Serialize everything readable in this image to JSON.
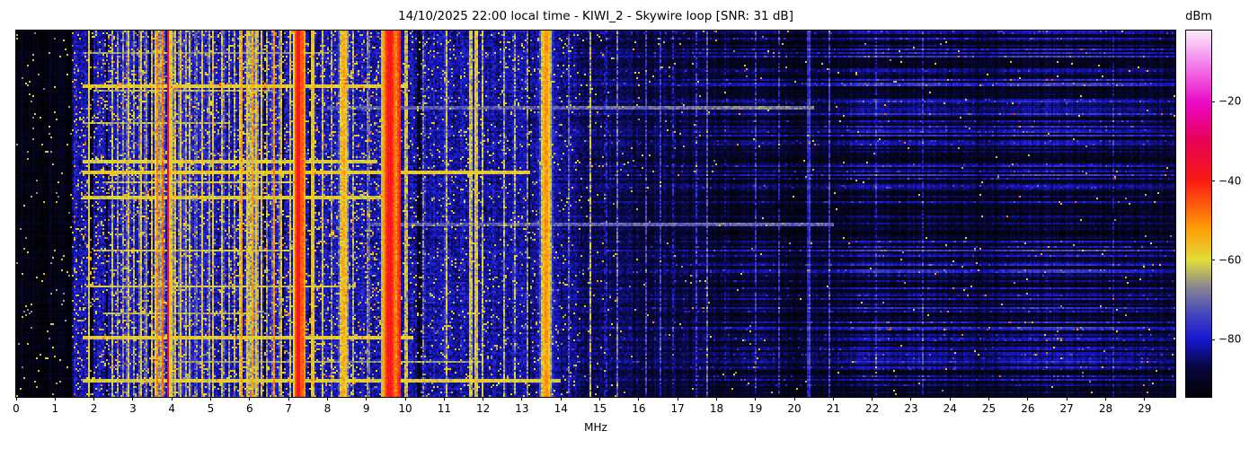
{
  "title": "14/10/2025 22:00 local time - KIWI_2 - Skywire loop [SNR: 31 dB]",
  "chart_data": {
    "type": "heatmap",
    "subtype": "radio-spectrogram-waterfall",
    "title": "14/10/2025 22:00 local time - KIWI_2 - Skywire loop [SNR: 31 dB]",
    "station": "KIWI_2",
    "antenna": "Skywire loop",
    "snr_db": 31,
    "timestamp_label": "14/10/2025 22:00 local time",
    "xlabel": "MHz",
    "x_range": [
      0,
      29.79
    ],
    "x_ticks": [
      0,
      1,
      2,
      3,
      4,
      5,
      6,
      7,
      8,
      9,
      10,
      11,
      12,
      13,
      14,
      15,
      16,
      17,
      18,
      19,
      20,
      21,
      22,
      23,
      24,
      25,
      26,
      27,
      28,
      29
    ],
    "value_label": "dBm",
    "value_range": [
      -94.5,
      -2
    ],
    "colorbar_ticks": [
      -20,
      -40,
      -60,
      -80
    ],
    "legend_position": "right-colorbar",
    "grid": false,
    "colormap_stops": [
      [
        0.0,
        [
          2,
          2,
          6
        ]
      ],
      [
        0.08,
        [
          8,
          8,
          62
        ]
      ],
      [
        0.157,
        [
          24,
          24,
          208
        ]
      ],
      [
        0.23,
        [
          74,
          74,
          190
        ]
      ],
      [
        0.3,
        [
          138,
          136,
          148
        ]
      ],
      [
        0.373,
        [
          226,
          222,
          58
        ]
      ],
      [
        0.46,
        [
          255,
          158,
          8
        ]
      ],
      [
        0.589,
        [
          250,
          28,
          20
        ]
      ],
      [
        0.7,
        [
          232,
          2,
          84
        ]
      ],
      [
        0.805,
        [
          236,
          10,
          200
        ]
      ],
      [
        0.91,
        [
          244,
          130,
          236
        ]
      ],
      [
        1.0,
        [
          253,
          233,
          252
        ]
      ]
    ],
    "render_model": {
      "seed": 20251014,
      "cols": 645,
      "rows": 204,
      "noise_floor_dbm": [
        [
          0,
          -93
        ],
        [
          1.44,
          -93
        ],
        [
          1.46,
          -81
        ],
        [
          9.8,
          -81
        ],
        [
          12.5,
          -82
        ],
        [
          13.8,
          -82.5
        ],
        [
          14.6,
          -86.5
        ],
        [
          15.5,
          -87.5
        ],
        [
          17.6,
          -89.5
        ],
        [
          18.4,
          -91
        ],
        [
          29.79,
          -91
        ]
      ],
      "texture_db": [
        [
          0,
          2
        ],
        [
          1.44,
          2
        ],
        [
          1.46,
          9
        ],
        [
          9.8,
          9
        ],
        [
          13.8,
          8
        ],
        [
          14.6,
          6
        ],
        [
          15.5,
          5
        ],
        [
          17.8,
          4
        ],
        [
          29.79,
          4
        ]
      ],
      "speckle_prob": [
        [
          0,
          0.015
        ],
        [
          1.44,
          0.015
        ],
        [
          1.46,
          0.1
        ],
        [
          9.5,
          0.1
        ],
        [
          9.8,
          0.06
        ],
        [
          13.8,
          0.05
        ],
        [
          14.6,
          0.02
        ],
        [
          15.5,
          0.01
        ],
        [
          17.8,
          0.005
        ],
        [
          29.79,
          0.005
        ]
      ],
      "stripe_envelope": [
        [
          13.9,
          0
        ],
        [
          14.5,
          0.18
        ],
        [
          15.5,
          0.22
        ],
        [
          17.0,
          0.25
        ],
        [
          17.9,
          0.45
        ],
        [
          18.4,
          0.6
        ],
        [
          19.4,
          0.6
        ],
        [
          20.1,
          0.42
        ],
        [
          21.0,
          0.6
        ],
        [
          21.6,
          0.9
        ],
        [
          23.2,
          0.95
        ],
        [
          24.3,
          0.8
        ],
        [
          24.9,
          0.6
        ],
        [
          25.6,
          0.95
        ],
        [
          27.6,
          1.0
        ],
        [
          28.8,
          0.8
        ],
        [
          29.4,
          0.6
        ],
        [
          29.79,
          0.55
        ]
      ],
      "signals": [
        {
          "f": 1.87,
          "w": 0.02,
          "dbm": -56,
          "flicker": 0.3
        },
        {
          "f": 2.48,
          "w": 0.02,
          "dbm": -58,
          "flicker": 0.4
        },
        {
          "f": 2.6,
          "w": 0.02,
          "dbm": -60,
          "flicker": 0.5
        },
        {
          "f": 2.75,
          "w": 0.02,
          "dbm": -62,
          "flicker": 0.5
        },
        {
          "f": 2.88,
          "w": 0.03,
          "dbm": -57,
          "flicker": 0.4
        },
        {
          "f": 3.02,
          "w": 0.02,
          "dbm": -60,
          "flicker": 0.5
        },
        {
          "f": 3.2,
          "w": 0.025,
          "dbm": -55,
          "flicker": 0.35
        },
        {
          "f": 3.33,
          "w": 0.02,
          "dbm": -58,
          "flicker": 0.4
        },
        {
          "f": 3.49,
          "w": 0.02,
          "dbm": -57,
          "flicker": 0.4
        },
        {
          "f": 3.62,
          "w": 0.03,
          "dbm": -46,
          "flicker": 0.3
        },
        {
          "f": 3.76,
          "w": 0.025,
          "dbm": -44,
          "flicker": 0.3
        },
        {
          "f": 3.9,
          "w": 0.018,
          "dbm": -27,
          "flicker": 0.15
        },
        {
          "f": 3.97,
          "w": 0.02,
          "dbm": -47,
          "flicker": 0.3
        },
        {
          "f": 4.07,
          "w": 0.02,
          "dbm": -52,
          "flicker": 0.4
        },
        {
          "f": 4.22,
          "w": 0.03,
          "dbm": -55,
          "flicker": 0.4
        },
        {
          "f": 4.35,
          "w": 0.02,
          "dbm": -57,
          "flicker": 0.4
        },
        {
          "f": 4.47,
          "w": 0.02,
          "dbm": -56,
          "flicker": 0.4
        },
        {
          "f": 4.62,
          "w": 0.02,
          "dbm": -60,
          "flicker": 0.5
        },
        {
          "f": 4.78,
          "w": 0.025,
          "dbm": -55,
          "flicker": 0.4
        },
        {
          "f": 4.95,
          "w": 0.02,
          "dbm": -58,
          "flicker": 0.4
        },
        {
          "f": 5.06,
          "w": 0.02,
          "dbm": -55,
          "flicker": 0.4
        },
        {
          "f": 5.3,
          "w": 0.025,
          "dbm": -56,
          "flicker": 0.4
        },
        {
          "f": 5.48,
          "w": 0.02,
          "dbm": -60,
          "flicker": 0.5
        },
        {
          "f": 5.62,
          "w": 0.02,
          "dbm": -58,
          "flicker": 0.5
        },
        {
          "f": 5.78,
          "w": 0.02,
          "dbm": -45,
          "flicker": 0.3
        },
        {
          "f": 5.95,
          "w": 0.03,
          "dbm": -53,
          "flicker": 0.4
        },
        {
          "f": 6.07,
          "w": 0.03,
          "dbm": -48,
          "flicker": 0.35
        },
        {
          "f": 6.18,
          "w": 0.025,
          "dbm": -52,
          "flicker": 0.4
        },
        {
          "f": 6.3,
          "w": 0.02,
          "dbm": -55,
          "flicker": 0.4
        },
        {
          "f": 6.45,
          "w": 0.02,
          "dbm": -60,
          "flicker": 0.5
        },
        {
          "f": 6.62,
          "w": 0.02,
          "dbm": -46,
          "flicker": 0.35
        },
        {
          "f": 6.8,
          "w": 0.025,
          "dbm": -54,
          "flicker": 0.4
        },
        {
          "f": 7.05,
          "w": 0.02,
          "dbm": -56,
          "flicker": 0.4
        },
        {
          "f": 7.25,
          "w": 0.06,
          "dbm": -36,
          "flicker": 0.12
        },
        {
          "f": 7.38,
          "w": 0.03,
          "dbm": -42,
          "flicker": 0.2
        },
        {
          "f": 7.62,
          "w": 0.03,
          "dbm": -50,
          "flicker": 0.35
        },
        {
          "f": 7.87,
          "w": 0.02,
          "dbm": -55,
          "flicker": 0.45
        },
        {
          "f": 8.1,
          "w": 0.02,
          "dbm": -60,
          "flicker": 0.5
        },
        {
          "f": 8.42,
          "w": 0.07,
          "dbm": -50,
          "flicker": 0.3
        },
        {
          "f": 8.65,
          "w": 0.02,
          "dbm": -58,
          "flicker": 0.5
        },
        {
          "f": 9.05,
          "w": 0.02,
          "dbm": -57,
          "flicker": 0.5
        },
        {
          "f": 9.6,
          "w": 0.1,
          "dbm": -37,
          "flicker": 0.12
        },
        {
          "f": 9.78,
          "w": 0.03,
          "dbm": -45,
          "flicker": 0.3
        },
        {
          "f": 9.84,
          "w": 0.018,
          "dbm": -30,
          "flicker": 0.2
        },
        {
          "f": 10.02,
          "w": 0.03,
          "dbm": -52,
          "flicker": 0.5
        },
        {
          "f": 10.45,
          "w": 0.02,
          "dbm": -62,
          "flicker": 0.6
        },
        {
          "f": 11.05,
          "w": 0.02,
          "dbm": -55,
          "flicker": 0.5
        },
        {
          "f": 11.68,
          "w": 0.03,
          "dbm": -54,
          "flicker": 0.4
        },
        {
          "f": 11.82,
          "w": 0.03,
          "dbm": -52,
          "flicker": 0.4
        },
        {
          "f": 11.98,
          "w": 0.02,
          "dbm": -57,
          "flicker": 0.5
        },
        {
          "f": 12.55,
          "w": 0.02,
          "dbm": -58,
          "flicker": 0.5
        },
        {
          "f": 12.8,
          "w": 0.015,
          "dbm": -52,
          "flicker": 0.7
        },
        {
          "f": 13.15,
          "w": 0.015,
          "dbm": -60,
          "flicker": 0.6
        },
        {
          "f": 13.62,
          "w": 0.08,
          "dbm": -48,
          "flicker": 0.25
        },
        {
          "f": 14.2,
          "w": 0.015,
          "dbm": -68,
          "flicker": 0.5
        },
        {
          "f": 14.75,
          "w": 0.02,
          "dbm": -58,
          "flicker": 0.6
        },
        {
          "f": 15.15,
          "w": 0.015,
          "dbm": -63,
          "flicker": 0.6
        },
        {
          "f": 15.45,
          "w": 0.015,
          "dbm": -66,
          "flicker": 0.6
        },
        {
          "f": 15.75,
          "w": 0.015,
          "dbm": -70,
          "flicker": 0.5
        },
        {
          "f": 16.2,
          "w": 0.015,
          "dbm": -68,
          "flicker": 0.5
        },
        {
          "f": 16.55,
          "w": 0.015,
          "dbm": -70,
          "flicker": 0.5
        },
        {
          "f": 16.9,
          "w": 0.015,
          "dbm": -66,
          "flicker": 0.6
        },
        {
          "f": 17.5,
          "w": 0.015,
          "dbm": -64,
          "flicker": 0.6
        },
        {
          "f": 17.75,
          "w": 0.015,
          "dbm": -68,
          "flicker": 0.5
        },
        {
          "f": 18.2,
          "w": 0.015,
          "dbm": -72,
          "flicker": 0.5
        },
        {
          "f": 19.0,
          "w": 0.015,
          "dbm": -74,
          "flicker": 0.5
        },
        {
          "f": 19.6,
          "w": 0.015,
          "dbm": -75,
          "flicker": 0.5
        },
        {
          "f": 20.37,
          "w": 0.02,
          "dbm": -68,
          "flicker": 0.2
        },
        {
          "f": 20.9,
          "w": 0.015,
          "dbm": -74,
          "flicker": 0.4
        },
        {
          "f": 22.1,
          "w": 0.012,
          "dbm": -78,
          "flicker": 0.5
        },
        {
          "f": 23.3,
          "w": 0.012,
          "dbm": -78,
          "flicker": 0.5
        },
        {
          "f": 24.9,
          "w": 0.012,
          "dbm": -80,
          "flicker": 0.5
        },
        {
          "f": 26.5,
          "w": 0.012,
          "dbm": -79,
          "flicker": 0.5
        },
        {
          "f": 28.2,
          "w": 0.012,
          "dbm": -80,
          "flicker": 0.5
        }
      ],
      "events": [
        {
          "row_frac": 0.06,
          "f0": 1.7,
          "f1": 8.0,
          "dbm": -66,
          "rows": 1
        },
        {
          "row_frac": 0.15,
          "f0": 1.7,
          "f1": 10.0,
          "dbm": -58,
          "rows": 2
        },
        {
          "row_frac": 0.165,
          "f0": 2.0,
          "f1": 6.6,
          "dbm": -64,
          "rows": 1
        },
        {
          "row_frac": 0.205,
          "f0": 8.0,
          "f1": 20.5,
          "dbm": -72,
          "rows": 2
        },
        {
          "row_frac": 0.25,
          "f0": 1.7,
          "f1": 5.5,
          "dbm": -64,
          "rows": 1
        },
        {
          "row_frac": 0.355,
          "f0": 1.7,
          "f1": 9.3,
          "dbm": -60,
          "rows": 2
        },
        {
          "row_frac": 0.385,
          "f0": 1.7,
          "f1": 13.2,
          "dbm": -58,
          "rows": 2
        },
        {
          "row_frac": 0.415,
          "f0": 2.2,
          "f1": 7.2,
          "dbm": -63,
          "rows": 1
        },
        {
          "row_frac": 0.455,
          "f0": 1.7,
          "f1": 9.9,
          "dbm": -60,
          "rows": 2
        },
        {
          "row_frac": 0.525,
          "f0": 9.0,
          "f1": 21.0,
          "dbm": -72,
          "rows": 2
        },
        {
          "row_frac": 0.6,
          "f0": 2.0,
          "f1": 7.0,
          "dbm": -62,
          "rows": 1
        },
        {
          "row_frac": 0.7,
          "f0": 1.8,
          "f1": 8.7,
          "dbm": -61,
          "rows": 1
        },
        {
          "row_frac": 0.775,
          "f0": 2.2,
          "f1": 6.0,
          "dbm": -64,
          "rows": 1
        },
        {
          "row_frac": 0.835,
          "f0": 1.7,
          "f1": 10.2,
          "dbm": -59,
          "rows": 2
        },
        {
          "row_frac": 0.905,
          "f0": 4.0,
          "f1": 12.0,
          "dbm": -66,
          "rows": 1
        },
        {
          "row_frac": 0.955,
          "f0": 1.7,
          "f1": 14.0,
          "dbm": -60,
          "rows": 2
        }
      ]
    }
  }
}
